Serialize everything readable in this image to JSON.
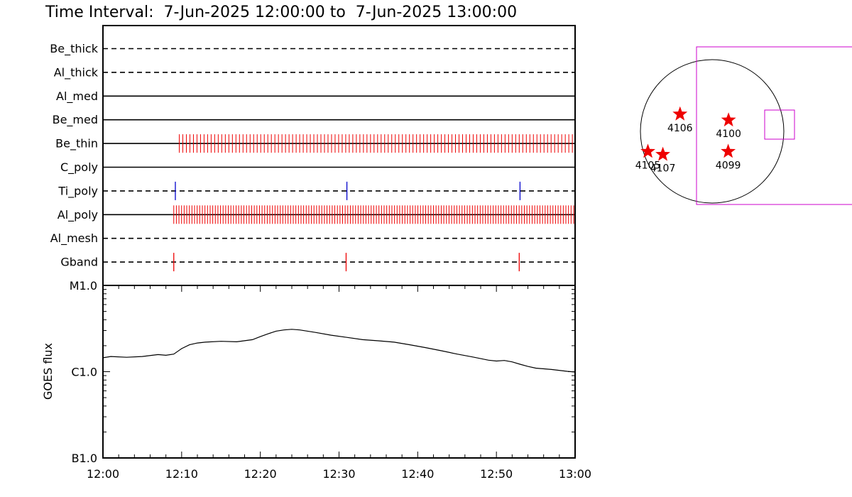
{
  "title": "Time Interval:  7-Jun-2025 12:00:00 to  7-Jun-2025 13:00:00",
  "colors": {
    "axis": "#000000",
    "red_event": "#ee0000",
    "blue_event": "#0000cc",
    "magenta_fov": "#cc00cc",
    "star": "#ee0000"
  },
  "chart_data": [
    {
      "type": "timeline",
      "name": "filter-timeline",
      "xlim": [
        "12:00",
        "13:00"
      ],
      "xlim_minutes": [
        0,
        60
      ],
      "rows": [
        {
          "label": "Be_thick",
          "style": "dashed",
          "events": []
        },
        {
          "label": "Al_thick",
          "style": "dashed",
          "events": []
        },
        {
          "label": "Al_med",
          "style": "solid",
          "events": []
        },
        {
          "label": "Be_med",
          "style": "solid",
          "events": []
        },
        {
          "label": "Be_thin",
          "style": "solid",
          "color": "red",
          "events_dense": {
            "start": 9.7,
            "end": 60.0,
            "period": 0.45
          }
        },
        {
          "label": "C_poly",
          "style": "solid",
          "events": []
        },
        {
          "label": "Ti_poly",
          "style": "dashed",
          "color": "blue",
          "events": [
            9.2,
            31.0,
            53.0
          ]
        },
        {
          "label": "Al_poly",
          "style": "solid",
          "color": "red",
          "events_dense": {
            "start": 9.0,
            "end": 60.0,
            "period": 0.33
          }
        },
        {
          "label": "Al_mesh",
          "style": "dashed",
          "events": []
        },
        {
          "label": "Gband",
          "style": "dashed",
          "color": "red",
          "events": [
            9.0,
            30.9,
            52.9
          ]
        }
      ]
    },
    {
      "type": "line",
      "name": "goes-flux",
      "ylabel": "GOES flux",
      "yscale": "log",
      "ylim": [
        1e-07,
        1e-05
      ],
      "yticks": [
        {
          "value": 1e-07,
          "label": "B1.0"
        },
        {
          "value": 1e-06,
          "label": "C1.0"
        },
        {
          "value": 1e-05,
          "label": "M1.0"
        }
      ],
      "xlim": [
        0,
        60
      ],
      "xticks": [
        {
          "value": 0,
          "label": "12:00"
        },
        {
          "value": 10,
          "label": "12:10"
        },
        {
          "value": 20,
          "label": "12:20"
        },
        {
          "value": 30,
          "label": "12:30"
        },
        {
          "value": 40,
          "label": "12:40"
        },
        {
          "value": 50,
          "label": "12:50"
        },
        {
          "value": 60,
          "label": "13:00"
        }
      ],
      "x": [
        0,
        1,
        3,
        5,
        7,
        8,
        9,
        10,
        11,
        12,
        13,
        15,
        17,
        19,
        20,
        21,
        22,
        23,
        24,
        25,
        27,
        29,
        31,
        33,
        35,
        37,
        39,
        41,
        43,
        45,
        47,
        49,
        50,
        51,
        52,
        53,
        54,
        55,
        57,
        59,
        60
      ],
      "y": [
        1.45e-06,
        1.5e-06,
        1.47e-06,
        1.5e-06,
        1.58e-06,
        1.55e-06,
        1.6e-06,
        1.85e-06,
        2.05e-06,
        2.15e-06,
        2.2e-06,
        2.25e-06,
        2.22e-06,
        2.35e-06,
        2.55e-06,
        2.75e-06,
        2.95e-06,
        3.05e-06,
        3.1e-06,
        3.05e-06,
        2.85e-06,
        2.65e-06,
        2.5e-06,
        2.35e-06,
        2.28e-06,
        2.2e-06,
        2.05e-06,
        1.9e-06,
        1.75e-06,
        1.6e-06,
        1.48e-06,
        1.36e-06,
        1.33e-06,
        1.35e-06,
        1.3e-06,
        1.22e-06,
        1.15e-06,
        1.1e-06,
        1.06e-06,
        1.01e-06,
        9.9e-07
      ]
    },
    {
      "type": "scatter",
      "name": "active-regions",
      "points": [
        {
          "label": "4105",
          "x": -860,
          "y": -270
        },
        {
          "label": "4107",
          "x": -660,
          "y": -310
        },
        {
          "label": "4106",
          "x": -430,
          "y": 230
        },
        {
          "label": "4100",
          "x": 220,
          "y": 150
        },
        {
          "label": "4099",
          "x": 215,
          "y": -270
        }
      ]
    }
  ]
}
